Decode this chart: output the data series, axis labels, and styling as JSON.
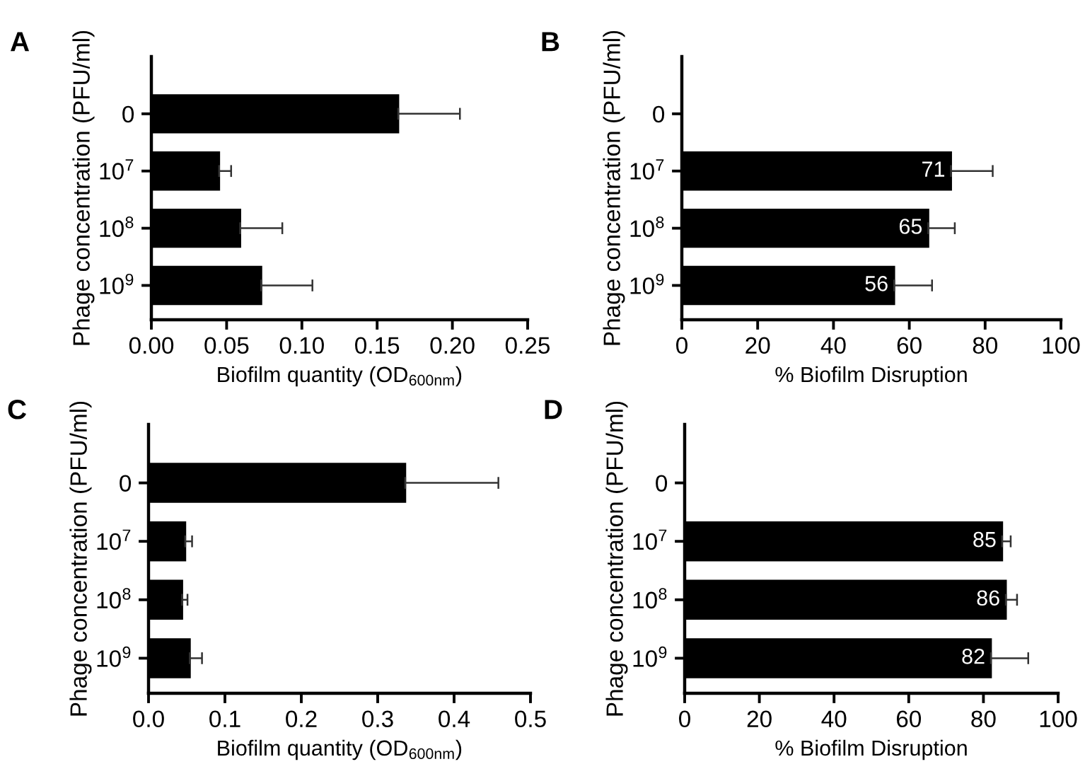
{
  "chart_data": [
    {
      "type": "bar",
      "orientation": "horizontal",
      "title": "A",
      "ylabel": "Phage concentration (PFU/ml)",
      "xlabel": "Biofilm quantity (OD$_{600nm}$)",
      "categories": [
        "0",
        "10$^{7}$",
        "10$^{8}$",
        "10$^{9}$"
      ],
      "values": [
        0.164,
        0.045,
        0.059,
        0.073
      ],
      "errors": [
        0.041,
        0.008,
        0.028,
        0.034
      ],
      "color": "#000000",
      "xlim": [
        0,
        0.25
      ],
      "xticks": [
        {
          "value": 0,
          "label": "0.00"
        },
        0.05,
        {
          "value": 0.1,
          "label": "0.10"
        },
        0.15,
        {
          "value": 0.2,
          "label": "0.20"
        },
        0.25
      ],
      "grid": false,
      "legend": false
    },
    {
      "type": "bar",
      "orientation": "horizontal",
      "title": "B",
      "ylabel": "Phage concentration (PFU/ml)",
      "xlabel": "% Biofilm Disruption",
      "categories": [
        "0",
        "10$^{7}$",
        "10$^{8}$",
        "10$^{9}$"
      ],
      "values": [
        null,
        71,
        65,
        56
      ],
      "errors": [
        null,
        11,
        7,
        10
      ],
      "color": "#000000",
      "data_labels": true,
      "xlim": [
        0,
        100
      ],
      "xticks": [
        0,
        20,
        40,
        60,
        80,
        100
      ],
      "grid": false,
      "legend": false
    },
    {
      "type": "bar",
      "orientation": "horizontal",
      "title": "C",
      "ylabel": "Phage concentration (PFU/ml)",
      "xlabel": "Biofilm quantity (OD$_{600nm}$)",
      "categories": [
        "0",
        "10$^{7}$",
        "10$^{8}$",
        "10$^{9}$"
      ],
      "values": [
        0.336,
        0.048,
        0.044,
        0.054
      ],
      "errors": [
        0.122,
        0.009,
        0.007,
        0.016
      ],
      "color": "#000000",
      "xlim": [
        0,
        0.5
      ],
      "xticks": [
        {
          "value": 0,
          "label": "0.0"
        },
        0.1,
        0.2,
        0.3,
        0.4,
        0.5
      ],
      "grid": false,
      "legend": false
    },
    {
      "type": "bar",
      "orientation": "horizontal",
      "title": "D",
      "ylabel": "Phage concentration (PFU/ml)",
      "xlabel": "% Biofilm Disruption",
      "categories": [
        "0",
        "10$^{7}$",
        "10$^{8}$",
        "10$^{9}$"
      ],
      "values": [
        null,
        85,
        86,
        82
      ],
      "errors": [
        null,
        2.3,
        3,
        10
      ],
      "color": "#000000",
      "data_labels": true,
      "xlim": [
        0,
        100
      ],
      "xticks": [
        0,
        20,
        40,
        60,
        80,
        100
      ],
      "grid": false,
      "legend": false
    }
  ]
}
